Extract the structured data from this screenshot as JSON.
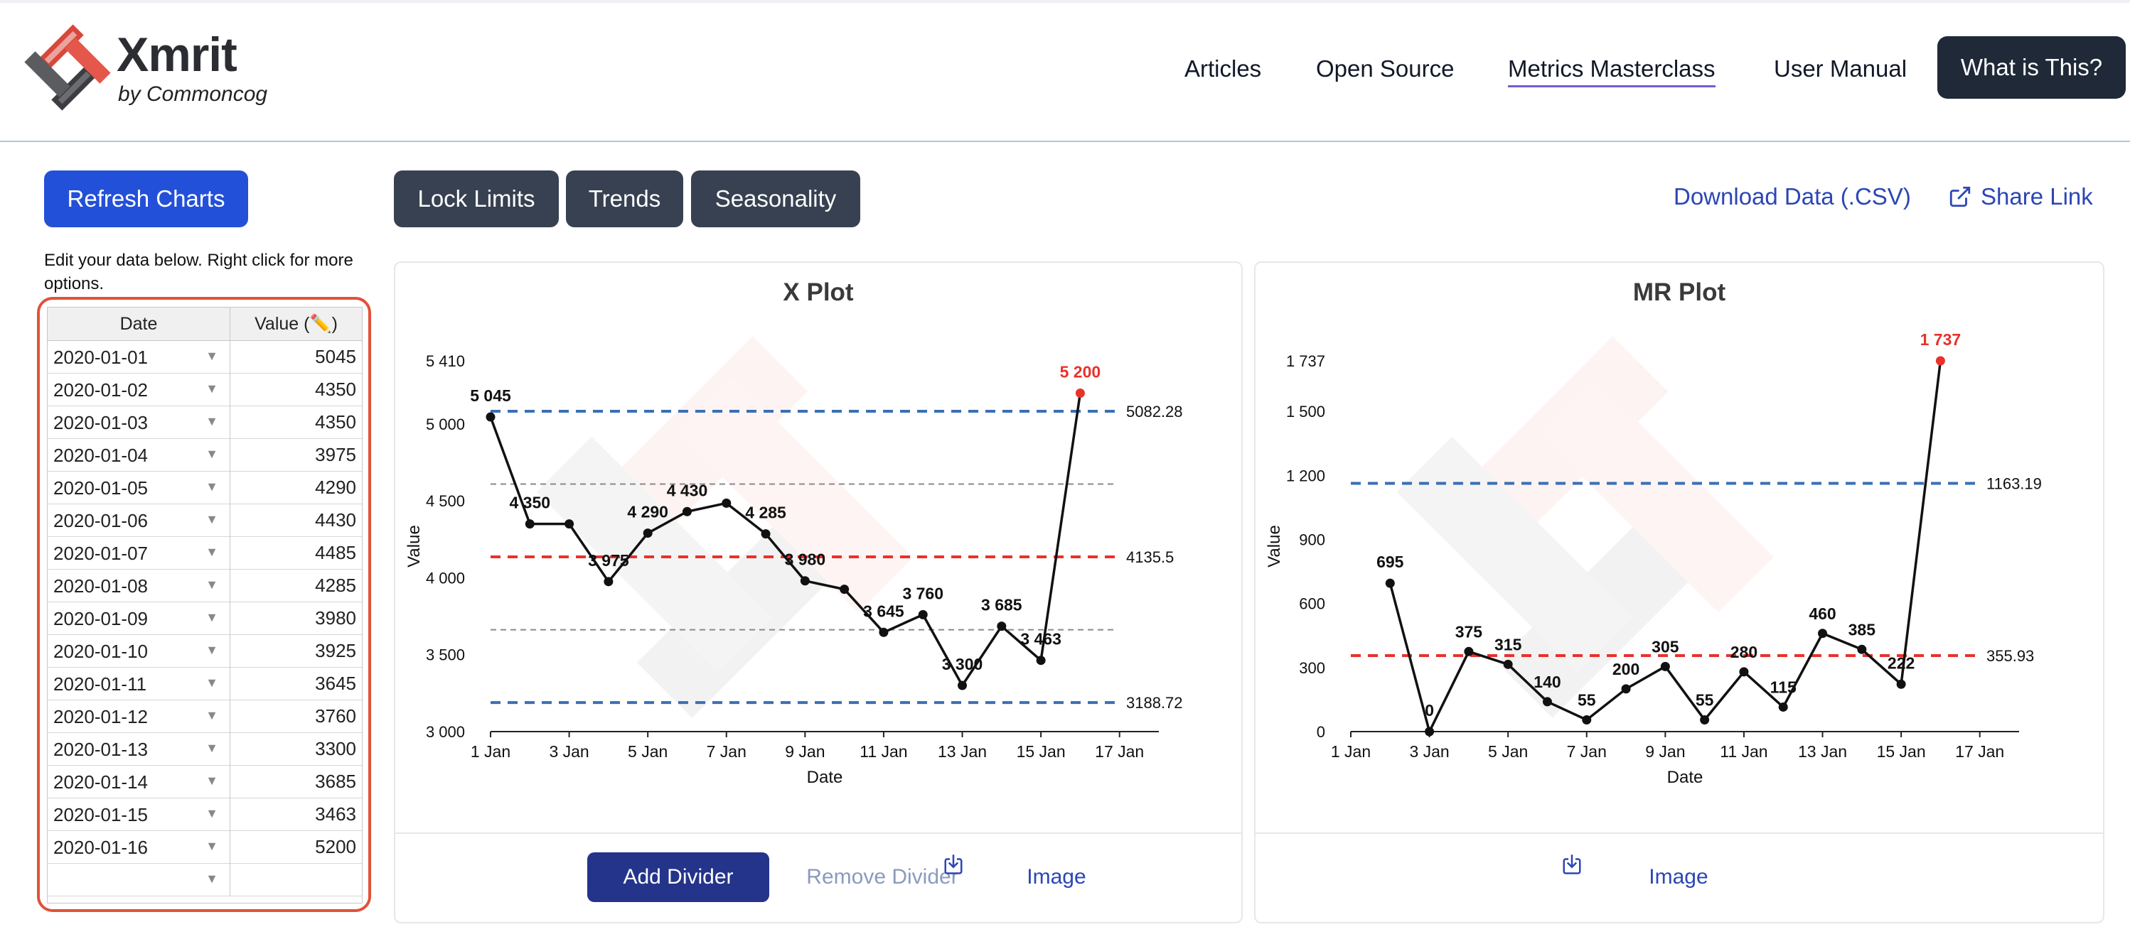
{
  "brand": {
    "name": "Xmrit",
    "sub": "by Commoncog"
  },
  "nav": {
    "articles": "Articles",
    "open_source": "Open Source",
    "masterclass": "Metrics Masterclass",
    "manual": "User Manual",
    "cta": "What is This?"
  },
  "toolbar": {
    "refresh": "Refresh Charts",
    "lock": "Lock Limits",
    "trends": "Trends",
    "seasonality": "Seasonality",
    "download": "Download Data (.CSV)",
    "share": "Share Link"
  },
  "hint": "Edit your data below. Right click for more options.",
  "table": {
    "headers": [
      "Date",
      "Value (✏️)"
    ],
    "rows": [
      {
        "date": "2020-01-01",
        "value": "5045"
      },
      {
        "date": "2020-01-02",
        "value": "4350"
      },
      {
        "date": "2020-01-03",
        "value": "4350"
      },
      {
        "date": "2020-01-04",
        "value": "3975"
      },
      {
        "date": "2020-01-05",
        "value": "4290"
      },
      {
        "date": "2020-01-06",
        "value": "4430"
      },
      {
        "date": "2020-01-07",
        "value": "4485"
      },
      {
        "date": "2020-01-08",
        "value": "4285"
      },
      {
        "date": "2020-01-09",
        "value": "3980"
      },
      {
        "date": "2020-01-10",
        "value": "3925"
      },
      {
        "date": "2020-01-11",
        "value": "3645"
      },
      {
        "date": "2020-01-12",
        "value": "3760"
      },
      {
        "date": "2020-01-13",
        "value": "3300"
      },
      {
        "date": "2020-01-14",
        "value": "3685"
      },
      {
        "date": "2020-01-15",
        "value": "3463"
      },
      {
        "date": "2020-01-16",
        "value": "5200"
      },
      {
        "date": "",
        "value": ""
      }
    ]
  },
  "footer": {
    "add_divider": "Add Divider",
    "remove_divider": "Remove Divider",
    "image": "Image"
  },
  "colors": {
    "primary": "#2350d8",
    "dark": "#374151",
    "navy": "#1f2937",
    "limit_blue": "#3a6fb5",
    "center_red": "#e8322a",
    "grey_dash": "#8a8a8a",
    "outlier": "#e8322a"
  },
  "chart_data": [
    {
      "type": "line",
      "title": "X Plot",
      "xlabel": "Date",
      "ylabel": "Value",
      "x": [
        1,
        2,
        3,
        4,
        5,
        6,
        7,
        8,
        9,
        10,
        11,
        12,
        13,
        14,
        15,
        16
      ],
      "values": [
        5045,
        4350,
        4350,
        3975,
        4290,
        4430,
        4485,
        4285,
        3980,
        3925,
        3645,
        3760,
        3300,
        3685,
        3463,
        5200
      ],
      "point_labels": [
        "5 045",
        "4 350",
        "",
        "3 975",
        "4 290",
        "4 430",
        "",
        "4 285",
        "3 980",
        "",
        "3 645",
        "3 760",
        "3 300",
        "3 685",
        "3 463",
        "5 200"
      ],
      "x_tick_values": [
        1,
        3,
        5,
        7,
        9,
        11,
        13,
        15,
        17
      ],
      "x_ticks": [
        "1 Jan",
        "3 Jan",
        "5 Jan",
        "7 Jan",
        "9 Jan",
        "11 Jan",
        "13 Jan",
        "15 Jan",
        "17 Jan"
      ],
      "y_tick_values": [
        3000,
        3500,
        4000,
        4500,
        5000,
        5410
      ],
      "y_ticks": [
        "3 000",
        "3 500",
        "4 000",
        "4 500",
        "5 000",
        "5 410"
      ],
      "ylim": [
        3000,
        5410
      ],
      "xlim": [
        1,
        18
      ],
      "lines": [
        {
          "value": 5082.28,
          "label": "5082.28",
          "style": "limit"
        },
        {
          "value": 4135.5,
          "label": "4135.5",
          "style": "center"
        },
        {
          "value": 3188.72,
          "label": "3188.72",
          "style": "limit"
        },
        {
          "value": 4608.89,
          "label": "",
          "style": "grey"
        },
        {
          "value": 3662.11,
          "label": "",
          "style": "grey"
        }
      ],
      "outliers": [
        15
      ]
    },
    {
      "type": "line",
      "title": "MR Plot",
      "xlabel": "Date",
      "ylabel": "Value",
      "x": [
        2,
        3,
        4,
        5,
        6,
        7,
        8,
        9,
        10,
        11,
        12,
        13,
        14,
        15,
        16
      ],
      "values": [
        695,
        0,
        375,
        315,
        140,
        55,
        200,
        305,
        55,
        280,
        115,
        460,
        385,
        222,
        1737
      ],
      "point_labels": [
        "695",
        "0",
        "375",
        "315",
        "140",
        "55",
        "200",
        "305",
        "55",
        "280",
        "115",
        "460",
        "385",
        "222",
        "1 737"
      ],
      "x_tick_values": [
        1,
        3,
        5,
        7,
        9,
        11,
        13,
        15,
        17
      ],
      "x_ticks": [
        "1 Jan",
        "3 Jan",
        "5 Jan",
        "7 Jan",
        "9 Jan",
        "11 Jan",
        "13 Jan",
        "15 Jan",
        "17 Jan"
      ],
      "y_tick_values": [
        0,
        300,
        600,
        900,
        1200,
        1500,
        1737
      ],
      "y_ticks": [
        "0",
        "300",
        "600",
        "900",
        "1 200",
        "1 500",
        "1 737"
      ],
      "ylim": [
        0,
        1737
      ],
      "xlim": [
        1,
        18
      ],
      "lines": [
        {
          "value": 1163.19,
          "label": "1163.19",
          "style": "limit"
        },
        {
          "value": 355.93,
          "label": "355.93",
          "style": "center"
        }
      ],
      "outliers": [
        14
      ]
    }
  ]
}
